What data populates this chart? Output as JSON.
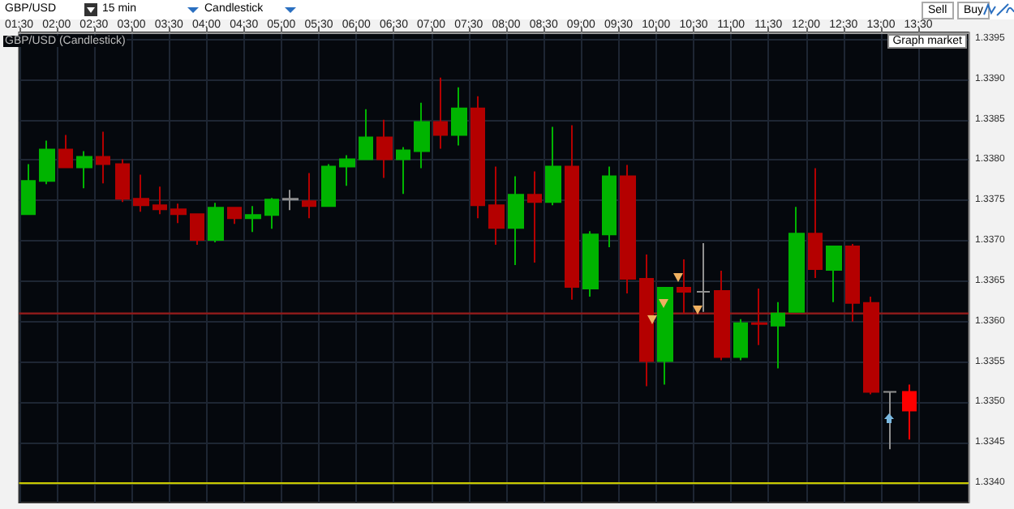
{
  "chart_data": {
    "type": "candlestick",
    "title": "GBP/USD (Candlestick)",
    "annotations": [
      "GBP/USD",
      "15 min",
      "Candlestick",
      "Sell",
      "Buy",
      "Graph market"
    ],
    "x": [
      1.625,
      1.875,
      2.125,
      2.375,
      2.625,
      2.875,
      3.125,
      3.375,
      3.625,
      3.875,
      4.125,
      4.375,
      4.625,
      4.875,
      5.125,
      5.375,
      5.625,
      5.875,
      6.125,
      6.375,
      6.625,
      6.875,
      7.125,
      7.375,
      7.625,
      7.875,
      8.125,
      8.375,
      8.625,
      8.875,
      9.125,
      9.375,
      9.625,
      9.875,
      10.125,
      10.375,
      10.625,
      10.875,
      11.125,
      11.375,
      11.625,
      11.875,
      12.125,
      12.375,
      12.625,
      12.875,
      13.125,
      13.375
    ],
    "ohlc": [
      [
        1.33733,
        1.33795,
        1.33733,
        1.33774
      ],
      [
        1.33774,
        1.33824,
        1.3377,
        1.33813
      ],
      [
        1.33813,
        1.33831,
        1.33791,
        1.33791
      ],
      [
        1.33791,
        1.33811,
        1.33765,
        1.33804
      ],
      [
        1.33804,
        1.33835,
        1.33771,
        1.33795
      ],
      [
        1.33795,
        1.33801,
        1.33748,
        1.33752
      ],
      [
        1.33752,
        1.33782,
        1.33736,
        1.33744
      ],
      [
        1.33744,
        1.33767,
        1.33733,
        1.33739
      ],
      [
        1.33739,
        1.33746,
        1.33722,
        1.33733
      ],
      [
        1.33733,
        1.33733,
        1.33695,
        1.33701
      ],
      [
        1.33701,
        1.33747,
        1.33698,
        1.33741
      ],
      [
        1.33741,
        1.33741,
        1.33721,
        1.33728
      ],
      [
        1.33728,
        1.33743,
        1.33711,
        1.33732
      ],
      [
        1.33732,
        1.33753,
        1.33715,
        1.33751
      ],
      [
        1.33751,
        1.33763,
        1.33738,
        1.33752
      ],
      [
        1.33749,
        1.33784,
        1.33728,
        1.33743
      ],
      [
        1.33743,
        1.33795,
        1.33743,
        1.33792
      ],
      [
        1.33792,
        1.33806,
        1.33768,
        1.33801
      ],
      [
        1.33801,
        1.33863,
        1.33801,
        1.33828
      ],
      [
        1.33828,
        1.3385,
        1.33778,
        1.33801
      ],
      [
        1.33801,
        1.33816,
        1.33758,
        1.33812
      ],
      [
        1.33811,
        1.33871,
        1.3379,
        1.33847
      ],
      [
        1.33847,
        1.33902,
        1.33814,
        1.33831
      ],
      [
        1.33831,
        1.3389,
        1.33818,
        1.33864
      ],
      [
        1.33864,
        1.33879,
        1.33728,
        1.33744
      ],
      [
        1.33744,
        1.33792,
        1.33695,
        1.33716
      ],
      [
        1.33716,
        1.3378,
        1.3367,
        1.33757
      ],
      [
        1.33757,
        1.33786,
        1.33673,
        1.33748
      ],
      [
        1.33748,
        1.33841,
        1.33744,
        1.33792
      ],
      [
        1.33792,
        1.33843,
        1.33627,
        1.33643
      ],
      [
        1.33641,
        1.33712,
        1.33631,
        1.33708
      ],
      [
        1.33708,
        1.33792,
        1.33692,
        1.3378
      ],
      [
        1.3378,
        1.33794,
        1.33635,
        1.33653
      ],
      [
        1.33653,
        1.33683,
        1.3352,
        1.33551
      ],
      [
        1.33551,
        1.33643,
        1.33522,
        1.33642
      ],
      [
        1.33642,
        1.33677,
        1.3361,
        1.33637
      ],
      [
        1.33637,
        1.33697,
        1.33612,
        1.33637
      ],
      [
        1.33638,
        1.33663,
        1.33552,
        1.33556
      ],
      [
        1.33556,
        1.33603,
        1.33552,
        1.33598
      ],
      [
        1.33598,
        1.33641,
        1.33571,
        1.33597
      ],
      [
        1.33595,
        1.33624,
        1.33542,
        1.3361
      ],
      [
        1.33612,
        1.33742,
        1.33612,
        1.33709
      ],
      [
        1.33709,
        1.3379,
        1.33654,
        1.33665
      ],
      [
        1.33664,
        1.33694,
        1.33624,
        1.33693
      ],
      [
        1.33693,
        1.33696,
        1.336,
        1.33623
      ],
      [
        1.33623,
        1.33631,
        1.3351,
        1.33513
      ],
      [
        1.33513,
        1.33514,
        1.33442,
        1.33513
      ],
      [
        1.33513,
        1.33522,
        1.33454,
        1.3349
      ]
    ],
    "colors": [
      "#00b400",
      "#00b400",
      "#b40000",
      "#00b400",
      "#b40000",
      "#b40000",
      "#b40000",
      "#b40000",
      "#b40000",
      "#b40000",
      "#00b400",
      "#b40000",
      "#00b400",
      "#00b400",
      "#909090",
      "#b40000",
      "#00b400",
      "#00b400",
      "#00b400",
      "#b40000",
      "#00b400",
      "#00b400",
      "#b40000",
      "#00b400",
      "#b40000",
      "#b40000",
      "#00b400",
      "#b40000",
      "#00b400",
      "#b40000",
      "#00b400",
      "#00b400",
      "#b40000",
      "#b40000",
      "#00b400",
      "#b40000",
      "#909090",
      "#b40000",
      "#00b400",
      "#b40000",
      "#00b400",
      "#00b400",
      "#b40000",
      "#00b400",
      "#b40000",
      "#b40000",
      "#909090",
      "#ff0000"
    ],
    "xlim": [
      1.5,
      14.17
    ],
    "xticks": [
      {
        "value": 1.5,
        "label": "01:30"
      },
      {
        "value": 2,
        "label": "02:00"
      },
      {
        "value": 2.5,
        "label": "02:30"
      },
      {
        "value": 3,
        "label": "03:00"
      },
      {
        "value": 3.5,
        "label": "03:30"
      },
      {
        "value": 4,
        "label": "04:00"
      },
      {
        "value": 4.5,
        "label": "04:30"
      },
      {
        "value": 5,
        "label": "05:00"
      },
      {
        "value": 5.5,
        "label": "05:30"
      },
      {
        "value": 6,
        "label": "06:00"
      },
      {
        "value": 6.5,
        "label": "06:30"
      },
      {
        "value": 7,
        "label": "07:00"
      },
      {
        "value": 7.5,
        "label": "07:30"
      },
      {
        "value": 8,
        "label": "08:00"
      },
      {
        "value": 8.5,
        "label": "08:30"
      },
      {
        "value": 9,
        "label": "09:00"
      },
      {
        "value": 9.5,
        "label": "09:30"
      },
      {
        "value": 10,
        "label": "10:00"
      },
      {
        "value": 10.5,
        "label": "10:30"
      },
      {
        "value": 11,
        "label": "11:00"
      },
      {
        "value": 11.5,
        "label": "11:30"
      },
      {
        "value": 12,
        "label": "12:00"
      },
      {
        "value": 12.5,
        "label": "12:30"
      },
      {
        "value": 13,
        "label": "13:00"
      },
      {
        "value": 13.5,
        "label": "13:30"
      }
    ],
    "ylim": [
      1.33376,
      1.33958
    ],
    "yticks": [
      {
        "value": 1.334,
        "label": "1.3340"
      },
      {
        "value": 1.3345,
        "label": "1.3345"
      },
      {
        "value": 1.335,
        "label": "1.3350"
      },
      {
        "value": 1.3355,
        "label": "1.3355"
      },
      {
        "value": 1.336,
        "label": "1.3360"
      },
      {
        "value": 1.3365,
        "label": "1.3365"
      },
      {
        "value": 1.337,
        "label": "1.3370"
      },
      {
        "value": 1.3375,
        "label": "1.3375"
      },
      {
        "value": 1.338,
        "label": "1.3380"
      },
      {
        "value": 1.3385,
        "label": "1.3385"
      },
      {
        "value": 1.339,
        "label": "1.3390"
      },
      {
        "value": 1.3395,
        "label": "1.3395"
      }
    ],
    "ref_lines": [
      {
        "axis": "y",
        "value": 1.3361,
        "color": "#8b1a1a"
      },
      {
        "axis": "y",
        "value": 1.334,
        "color": "#c8c800"
      }
    ],
    "grid": true
  }
}
